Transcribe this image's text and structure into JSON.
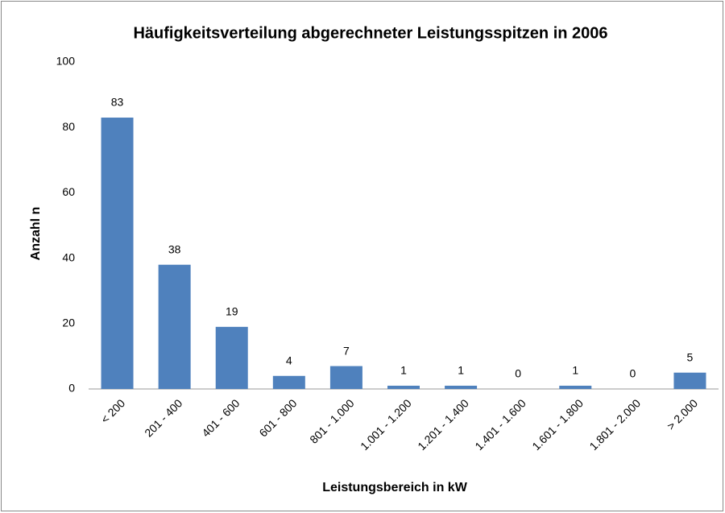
{
  "chart_data": {
    "type": "bar",
    "title": "Häufigkeitsverteilung abgerechneter Leistungsspitzen in 2006",
    "x_label": "Leistungsbereich in kW",
    "y_label": "Anzahl n",
    "categories": [
      "< 200",
      "201 - 400",
      "401 - 600",
      "601 - 800",
      "801 - 1.000",
      "1.001 - 1.200",
      "1.201 - 1.400",
      "1.401 - 1.600",
      "1.601 - 1.800",
      "1.801 - 2.000",
      "> 2.000"
    ],
    "values": [
      83,
      38,
      19,
      4,
      7,
      1,
      1,
      0,
      1,
      0,
      5
    ],
    "color": "#4f81bd",
    "ylim": [
      0,
      100
    ],
    "yticks": [
      0,
      20,
      40,
      60,
      80,
      100
    ],
    "grid": false
  }
}
